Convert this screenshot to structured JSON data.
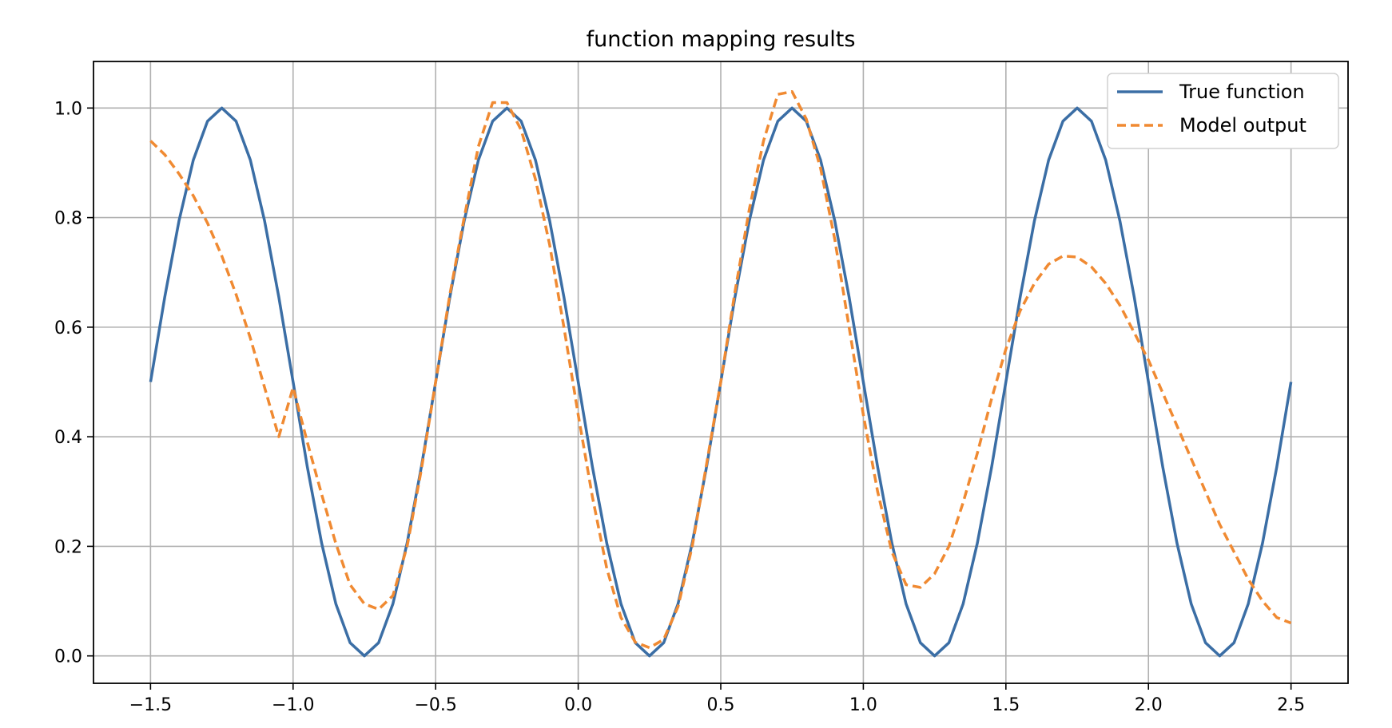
{
  "chart_data": {
    "type": "line",
    "title": "function mapping results",
    "xlabel": "",
    "ylabel": "",
    "xlim": [
      -1.7,
      2.7
    ],
    "ylim": [
      -0.05,
      1.085
    ],
    "xticks": [
      -1.5,
      -1.0,
      -0.5,
      0.0,
      0.5,
      1.0,
      1.5,
      2.0,
      2.5
    ],
    "xtick_labels": [
      "−1.5",
      "−1.0",
      "−0.5",
      "0.0",
      "0.5",
      "1.0",
      "1.5",
      "2.0",
      "2.5"
    ],
    "yticks": [
      0.0,
      0.2,
      0.4,
      0.6,
      0.8,
      1.0
    ],
    "ytick_labels": [
      "0.0",
      "0.2",
      "0.4",
      "0.6",
      "0.8",
      "1.0"
    ],
    "grid": true,
    "legend_position": "top-right",
    "series": [
      {
        "name": "True function",
        "color": "#3b6ea5",
        "style": "solid",
        "x": [
          -1.5,
          -1.45,
          -1.4,
          -1.35,
          -1.3,
          -1.25,
          -1.2,
          -1.15,
          -1.1,
          -1.05,
          -1.0,
          -0.95,
          -0.9,
          -0.85,
          -0.8,
          -0.75,
          -0.7,
          -0.65,
          -0.6,
          -0.55,
          -0.5,
          -0.45,
          -0.4,
          -0.35,
          -0.3,
          -0.25,
          -0.2,
          -0.15,
          -0.1,
          -0.05,
          0.0,
          0.05,
          0.1,
          0.15,
          0.2,
          0.25,
          0.3,
          0.35,
          0.4,
          0.45,
          0.5,
          0.55,
          0.6,
          0.65,
          0.7,
          0.75,
          0.8,
          0.85,
          0.9,
          0.95,
          1.0,
          1.05,
          1.1,
          1.15,
          1.2,
          1.25,
          1.3,
          1.35,
          1.4,
          1.45,
          1.5,
          1.55,
          1.6,
          1.65,
          1.7,
          1.75,
          1.8,
          1.85,
          1.9,
          1.95,
          2.0,
          2.05,
          2.1,
          2.15,
          2.2,
          2.25,
          2.3,
          2.35,
          2.4,
          2.45,
          2.5
        ],
        "y": [
          0.5,
          0.655,
          0.794,
          0.905,
          0.976,
          1.0,
          0.976,
          0.905,
          0.794,
          0.655,
          0.5,
          0.345,
          0.206,
          0.095,
          0.024,
          0.0,
          0.024,
          0.095,
          0.206,
          0.345,
          0.5,
          0.655,
          0.794,
          0.905,
          0.976,
          1.0,
          0.976,
          0.905,
          0.794,
          0.655,
          0.5,
          0.345,
          0.206,
          0.095,
          0.024,
          0.0,
          0.024,
          0.095,
          0.206,
          0.345,
          0.5,
          0.655,
          0.794,
          0.905,
          0.976,
          1.0,
          0.976,
          0.905,
          0.794,
          0.655,
          0.5,
          0.345,
          0.206,
          0.095,
          0.024,
          0.0,
          0.024,
          0.095,
          0.206,
          0.345,
          0.5,
          0.655,
          0.794,
          0.905,
          0.976,
          1.0,
          0.976,
          0.905,
          0.794,
          0.655,
          0.5,
          0.345,
          0.206,
          0.095,
          0.024,
          0.0,
          0.024,
          0.095,
          0.206,
          0.345,
          0.5
        ]
      },
      {
        "name": "Model output",
        "color": "#f08a32",
        "style": "dashed",
        "x": [
          -1.5,
          -1.45,
          -1.4,
          -1.35,
          -1.3,
          -1.25,
          -1.2,
          -1.15,
          -1.1,
          -1.05,
          -1.0,
          -0.95,
          -0.9,
          -0.85,
          -0.8,
          -0.75,
          -0.7,
          -0.65,
          -0.6,
          -0.55,
          -0.5,
          -0.45,
          -0.4,
          -0.35,
          -0.3,
          -0.25,
          -0.2,
          -0.15,
          -0.1,
          -0.05,
          0.0,
          0.05,
          0.1,
          0.15,
          0.2,
          0.25,
          0.3,
          0.35,
          0.4,
          0.45,
          0.5,
          0.55,
          0.6,
          0.65,
          0.7,
          0.75,
          0.8,
          0.85,
          0.9,
          0.95,
          1.0,
          1.05,
          1.1,
          1.15,
          1.2,
          1.25,
          1.3,
          1.35,
          1.4,
          1.45,
          1.5,
          1.55,
          1.6,
          1.65,
          1.7,
          1.75,
          1.8,
          1.85,
          1.9,
          1.95,
          2.0,
          2.05,
          2.1,
          2.15,
          2.2,
          2.25,
          2.3,
          2.35,
          2.4,
          2.45,
          2.5
        ],
        "y": [
          0.94,
          0.915,
          0.88,
          0.84,
          0.79,
          0.73,
          0.66,
          0.58,
          0.49,
          0.4,
          0.49,
          0.39,
          0.295,
          0.205,
          0.13,
          0.095,
          0.085,
          0.11,
          0.2,
          0.34,
          0.5,
          0.66,
          0.8,
          0.93,
          1.01,
          1.01,
          0.96,
          0.87,
          0.75,
          0.6,
          0.44,
          0.29,
          0.16,
          0.07,
          0.025,
          0.015,
          0.03,
          0.09,
          0.2,
          0.35,
          0.5,
          0.665,
          0.815,
          0.94,
          1.025,
          1.03,
          0.98,
          0.89,
          0.76,
          0.6,
          0.44,
          0.3,
          0.19,
          0.13,
          0.125,
          0.15,
          0.2,
          0.28,
          0.37,
          0.47,
          0.56,
          0.63,
          0.68,
          0.715,
          0.73,
          0.728,
          0.71,
          0.68,
          0.64,
          0.59,
          0.54,
          0.48,
          0.42,
          0.36,
          0.3,
          0.24,
          0.19,
          0.14,
          0.1,
          0.07,
          0.06
        ]
      }
    ]
  }
}
